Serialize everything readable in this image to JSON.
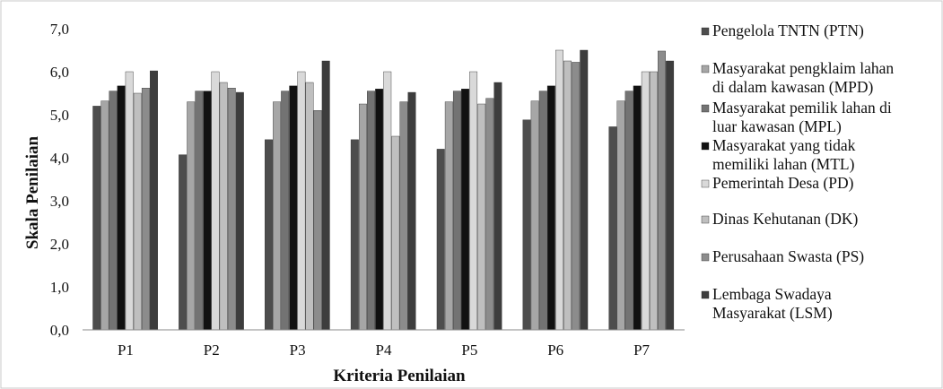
{
  "chart_data": {
    "type": "bar",
    "title": "",
    "xlabel": "Kriteria Penilaian",
    "ylabel": "Skala Penilaian",
    "ylim": [
      0,
      7
    ],
    "yticks": [
      "0,0",
      "1,0",
      "2,0",
      "3,0",
      "4,0",
      "5,0",
      "6,0",
      "7,0"
    ],
    "categories": [
      "P1",
      "P2",
      "P3",
      "P4",
      "P5",
      "P6",
      "P7"
    ],
    "grid": false,
    "legend_position": "right",
    "series": [
      {
        "name": "Pengelola TNTN (PTN)",
        "values": [
          5.2,
          4.07,
          4.42,
          4.42,
          4.2,
          4.88,
          4.72
        ],
        "color": "#4d4d4d"
      },
      {
        "name": "Masyarakat pengklaim lahan di dalam kawasan (MPD)",
        "values": [
          5.32,
          5.3,
          5.3,
          5.25,
          5.3,
          5.32,
          5.32
        ],
        "color": "#a6a6a6"
      },
      {
        "name": "Masyarakat pemilik lahan di luar kawasan (MPL)",
        "values": [
          5.55,
          5.55,
          5.55,
          5.55,
          5.55,
          5.55,
          5.55
        ],
        "color": "#737373"
      },
      {
        "name": "Masyarakat yang tidak memiliki lahan (MTL)",
        "values": [
          5.67,
          5.55,
          5.67,
          5.6,
          5.6,
          5.67,
          5.67
        ],
        "color": "#111111"
      },
      {
        "name": "Pemerintah Desa (PD)",
        "values": [
          6.0,
          6.0,
          6.0,
          6.0,
          6.0,
          6.5,
          6.0
        ],
        "color": "#d9d9d9"
      },
      {
        "name": "Dinas Kehutanan (DK)",
        "values": [
          5.5,
          5.75,
          5.75,
          4.5,
          5.25,
          6.25,
          6.0
        ],
        "color": "#bfbfbf"
      },
      {
        "name": "Perusahaan Swasta (PS)",
        "values": [
          5.62,
          5.62,
          5.1,
          5.3,
          5.38,
          6.22,
          6.48
        ],
        "color": "#8c8c8c"
      },
      {
        "name": "Lembaga Swadaya Masyarakat (LSM)",
        "values": [
          6.02,
          5.52,
          6.25,
          5.52,
          5.75,
          6.5,
          6.25
        ],
        "color": "#3d3d3d"
      }
    ]
  },
  "legend": [
    {
      "lines": [
        "Pengelola TNTN (PTN)"
      ]
    },
    {
      "lines": [
        "Masyarakat pengklaim lahan",
        "di dalam kawasan (MPD)"
      ]
    },
    {
      "lines": [
        "Masyarakat pemilik lahan di",
        "luar kawasan (MPL)"
      ]
    },
    {
      "lines": [
        "Masyarakat yang tidak",
        "memiliki lahan (MTL)"
      ]
    },
    {
      "lines": [
        "Pemerintah Desa (PD)"
      ]
    },
    {
      "lines": [
        "Dinas Kehutanan (DK)"
      ]
    },
    {
      "lines": [
        "Perusahaan Swasta (PS)"
      ]
    },
    {
      "lines": [
        "Lembaga Swadaya",
        "Masyarakat (LSM)"
      ]
    }
  ]
}
